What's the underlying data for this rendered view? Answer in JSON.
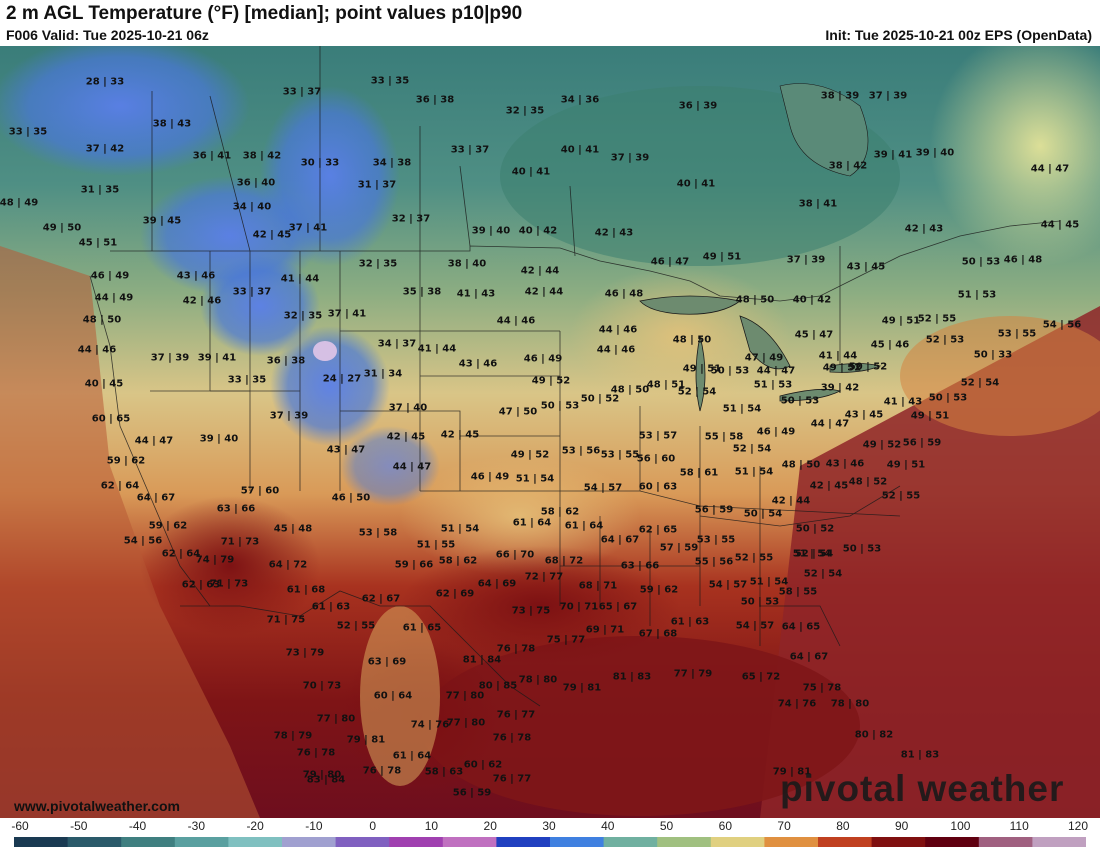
{
  "header": {
    "title": "2 m AGL Temperature (°F) [median]; point values p10|p90",
    "valid": "F006 Valid: Tue 2025-10-21 06z",
    "init": "Init: Tue 2025-10-21 00z EPS (OpenData)"
  },
  "footer": {
    "site_url": "www.pivotalweather.com",
    "brand": "pivotal weather"
  },
  "colorbar": {
    "ticks": [
      "-60",
      "-50",
      "-40",
      "-30",
      "-20",
      "-10",
      "0",
      "10",
      "20",
      "30",
      "40",
      "50",
      "60",
      "70",
      "80",
      "90",
      "100",
      "110",
      "120"
    ],
    "colors": [
      "#1a3a52",
      "#2a5a6a",
      "#3f7f80",
      "#5aa0a0",
      "#7fc0c0",
      "#a0a0d0",
      "#8060c0",
      "#a040b0",
      "#c070c0",
      "#2040c0",
      "#3f80e0",
      "#70b0a0",
      "#a0c080",
      "#e0d080",
      "#e09040",
      "#c04020",
      "#801010",
      "#600010",
      "#a06080",
      "#c0a0c0"
    ]
  },
  "map": {
    "colors": {
      "cold": "#3a6fd8",
      "cool": "#3f8f8a",
      "mild": "#9fb77f",
      "warm": "#e3c27c",
      "hot": "#b54022",
      "veryhot": "#7e1214",
      "ocean": "#8a2226"
    },
    "point_values": [
      "28|33",
      "33|37",
      "33|35",
      "36|38",
      "34|36",
      "36|39",
      "38|39",
      "37|39",
      "33|35",
      "38|43",
      "37|42",
      "30|33",
      "34|38",
      "32|35",
      "40|41",
      "37|39",
      "38|42",
      "39|41",
      "39|40",
      "44|47",
      "36|41",
      "38|42",
      "31|35",
      "36|40",
      "31|37",
      "33|37",
      "40|41",
      "40|41",
      "48|49",
      "39|45",
      "34|40",
      "37|41",
      "32|37",
      "39|40",
      "40|42",
      "42|43",
      "38|41",
      "42|43",
      "44|45",
      "49|50",
      "42|45",
      "45|51",
      "32|35",
      "38|40",
      "42|44",
      "46|47",
      "49|51",
      "37|39",
      "43|45",
      "50|53",
      "46|48",
      "46|49",
      "43|46",
      "41|44",
      "35|38",
      "41|43",
      "42|44",
      "46|48",
      "48|50",
      "40|42",
      "51|53",
      "44|49",
      "42|46",
      "33|37",
      "32|35",
      "37|41",
      "44|46",
      "44|46",
      "48|50",
      "45|47",
      "49|51",
      "52|55",
      "53|55",
      "54|56",
      "48|50",
      "34|37",
      "41|44",
      "46|49",
      "44|46",
      "47|49",
      "41|44",
      "45|46",
      "52|53",
      "44|46",
      "37|39",
      "39|41",
      "36|38",
      "24|27",
      "31|34",
      "43|46",
      "49|52",
      "49|51",
      "50|53",
      "44|47",
      "49|52",
      "50|52",
      "50|33",
      "40|45",
      "33|35",
      "50|53",
      "50|52",
      "48|50",
      "48|51",
      "51|53",
      "39|42",
      "52|54",
      "37|40",
      "47|50",
      "52|54",
      "51|54",
      "50|53",
      "41|43",
      "50|53",
      "60|65",
      "37|39",
      "42|45",
      "42|45",
      "53|57",
      "55|58",
      "46|49",
      "43|45",
      "49|51",
      "44|47",
      "39|40",
      "43|47",
      "49|52",
      "53|56",
      "53|55",
      "56|60",
      "52|54",
      "44|47",
      "49|52",
      "56|59",
      "59|62",
      "44|47",
      "46|49",
      "51|54",
      "54|57",
      "58|61",
      "51|54",
      "48|50",
      "43|46",
      "49|51",
      "62|64",
      "64|67",
      "57|60",
      "46|50",
      "60|63",
      "42|45",
      "48|52",
      "63|66",
      "56|59",
      "50|54",
      "42|44",
      "52|55",
      "59|62",
      "45|48",
      "53|58",
      "51|54",
      "58|62",
      "61|64",
      "61|64",
      "62|65",
      "50|52",
      "54|56",
      "71|73",
      "51|55",
      "66|70",
      "64|67",
      "53|55",
      "52|54",
      "50|53",
      "62|64",
      "74|79",
      "64|72",
      "59|66",
      "58|62",
      "68|72",
      "57|59",
      "51|54",
      "61|68",
      "72|77",
      "63|66",
      "55|56",
      "52|55",
      "52|54",
      "62|63",
      "71|73",
      "62|67",
      "62|69",
      "64|69",
      "68|71",
      "59|62",
      "54|57",
      "51|54",
      "61|63",
      "73|75",
      "70|71",
      "65|67",
      "50|53",
      "58|55",
      "71|75",
      "52|55",
      "61|65",
      "69|71",
      "67|68",
      "61|63",
      "54|57",
      "64|65",
      "75|77",
      "76|78",
      "64|67",
      "73|79",
      "63|69",
      "81|84",
      "65|72",
      "78|80",
      "80|85",
      "79|81",
      "81|83",
      "77|79",
      "75|78",
      "70|73",
      "60|64",
      "77|80",
      "74|76",
      "74|76",
      "78|80",
      "77|80",
      "77|80",
      "76|77",
      "76|78",
      "80|82",
      "78|79",
      "79|81",
      "76|78",
      "61|64",
      "60|62",
      "81|83",
      "79|80",
      "76|78",
      "83|84",
      "58|63",
      "76|77",
      "79|81",
      "56|59"
    ]
  }
}
